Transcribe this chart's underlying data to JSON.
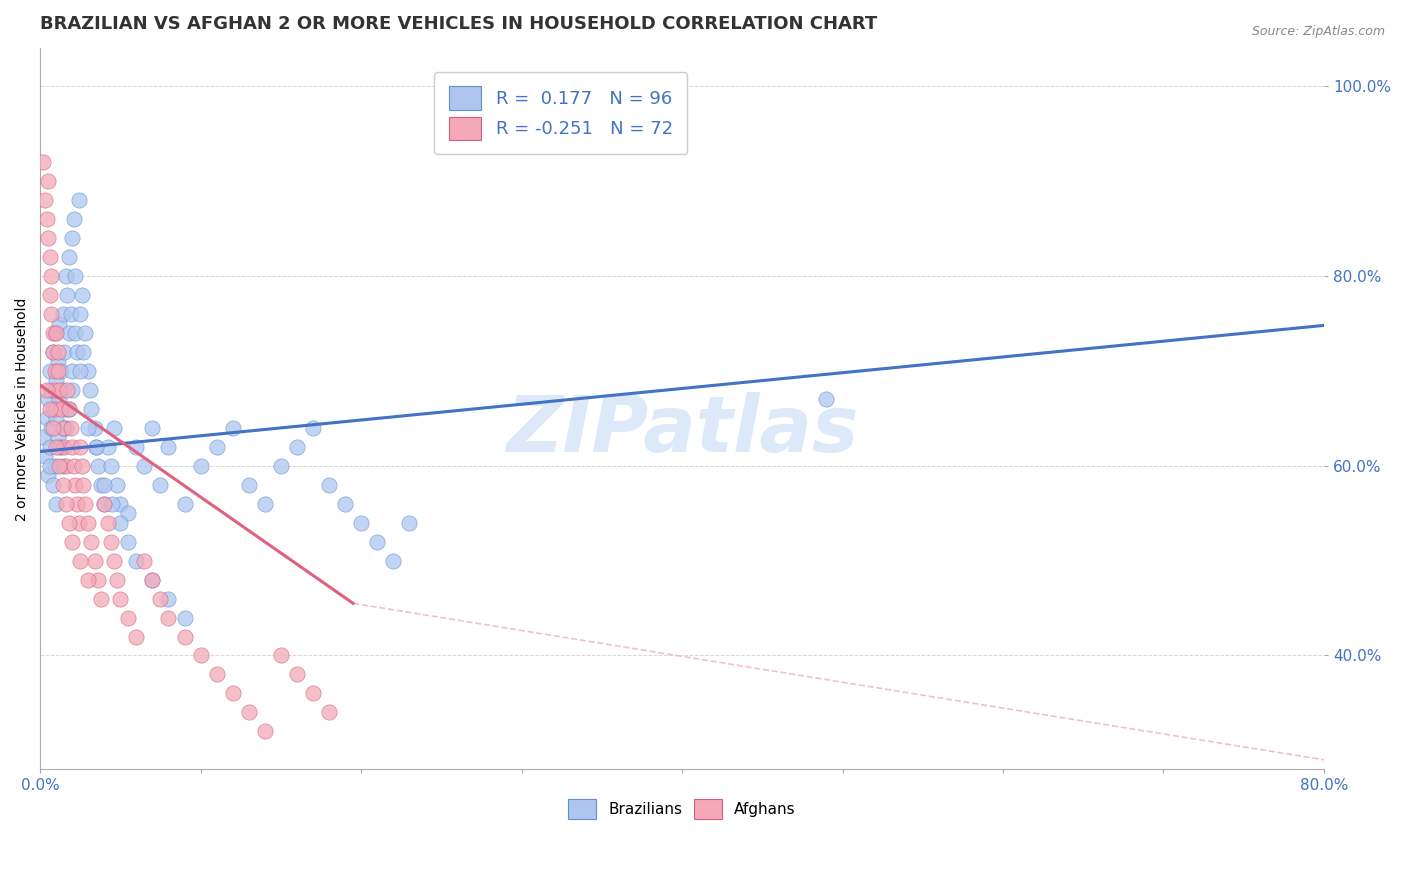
{
  "title": "BRAZILIAN VS AFGHAN 2 OR MORE VEHICLES IN HOUSEHOLD CORRELATION CHART",
  "source": "Source: ZipAtlas.com",
  "ylabel": "2 or more Vehicles in Household",
  "xlim": [
    0.0,
    0.8
  ],
  "ylim": [
    0.28,
    1.04
  ],
  "ytick_vals": [
    0.4,
    0.6,
    0.8,
    1.0
  ],
  "ytick_labels": [
    "40.0%",
    "60.0%",
    "80.0%",
    "100.0%"
  ],
  "xtick_show": [
    "0.0%",
    "80.0%"
  ],
  "legend_entries": [
    {
      "label": "R =  0.177   N = 96",
      "color": "#aec6ef"
    },
    {
      "label": "R = -0.251   N = 72",
      "color": "#f4a8b8"
    }
  ],
  "legend_bottom": [
    "Brazilians",
    "Afghans"
  ],
  "watermark": "ZIPatlas",
  "blue_scatter_x": [
    0.002,
    0.003,
    0.004,
    0.005,
    0.005,
    0.006,
    0.006,
    0.007,
    0.007,
    0.008,
    0.008,
    0.009,
    0.009,
    0.01,
    0.01,
    0.011,
    0.011,
    0.012,
    0.012,
    0.013,
    0.013,
    0.014,
    0.014,
    0.015,
    0.015,
    0.016,
    0.016,
    0.017,
    0.018,
    0.018,
    0.019,
    0.02,
    0.02,
    0.021,
    0.022,
    0.022,
    0.023,
    0.024,
    0.025,
    0.026,
    0.027,
    0.028,
    0.03,
    0.031,
    0.032,
    0.034,
    0.035,
    0.036,
    0.038,
    0.04,
    0.042,
    0.044,
    0.046,
    0.048,
    0.05,
    0.055,
    0.06,
    0.065,
    0.07,
    0.075,
    0.08,
    0.09,
    0.1,
    0.11,
    0.12,
    0.13,
    0.14,
    0.15,
    0.16,
    0.17,
    0.18,
    0.19,
    0.2,
    0.21,
    0.22,
    0.23,
    0.006,
    0.008,
    0.01,
    0.012,
    0.014,
    0.016,
    0.018,
    0.02,
    0.025,
    0.03,
    0.035,
    0.04,
    0.045,
    0.05,
    0.055,
    0.06,
    0.07,
    0.08,
    0.09,
    0.49
  ],
  "blue_scatter_y": [
    0.63,
    0.61,
    0.65,
    0.59,
    0.67,
    0.62,
    0.7,
    0.64,
    0.68,
    0.66,
    0.72,
    0.6,
    0.74,
    0.65,
    0.69,
    0.63,
    0.71,
    0.67,
    0.75,
    0.62,
    0.7,
    0.68,
    0.76,
    0.64,
    0.72,
    0.66,
    0.8,
    0.78,
    0.74,
    0.82,
    0.76,
    0.84,
    0.7,
    0.86,
    0.74,
    0.8,
    0.72,
    0.88,
    0.76,
    0.78,
    0.72,
    0.74,
    0.7,
    0.68,
    0.66,
    0.64,
    0.62,
    0.6,
    0.58,
    0.56,
    0.62,
    0.6,
    0.64,
    0.58,
    0.56,
    0.55,
    0.62,
    0.6,
    0.64,
    0.58,
    0.62,
    0.56,
    0.6,
    0.62,
    0.64,
    0.58,
    0.56,
    0.6,
    0.62,
    0.64,
    0.58,
    0.56,
    0.54,
    0.52,
    0.5,
    0.54,
    0.6,
    0.58,
    0.56,
    0.62,
    0.6,
    0.64,
    0.66,
    0.68,
    0.7,
    0.64,
    0.62,
    0.58,
    0.56,
    0.54,
    0.52,
    0.5,
    0.48,
    0.46,
    0.44,
    0.67
  ],
  "pink_scatter_x": [
    0.002,
    0.003,
    0.004,
    0.005,
    0.005,
    0.006,
    0.006,
    0.007,
    0.007,
    0.008,
    0.008,
    0.009,
    0.009,
    0.01,
    0.01,
    0.011,
    0.011,
    0.012,
    0.013,
    0.014,
    0.015,
    0.016,
    0.017,
    0.018,
    0.019,
    0.02,
    0.021,
    0.022,
    0.023,
    0.024,
    0.025,
    0.026,
    0.027,
    0.028,
    0.03,
    0.032,
    0.034,
    0.036,
    0.038,
    0.04,
    0.042,
    0.044,
    0.046,
    0.048,
    0.05,
    0.055,
    0.06,
    0.065,
    0.07,
    0.075,
    0.08,
    0.09,
    0.1,
    0.11,
    0.12,
    0.13,
    0.14,
    0.15,
    0.16,
    0.17,
    0.18,
    0.004,
    0.006,
    0.008,
    0.01,
    0.012,
    0.014,
    0.016,
    0.018,
    0.02,
    0.025,
    0.03
  ],
  "pink_scatter_y": [
    0.92,
    0.88,
    0.86,
    0.84,
    0.9,
    0.82,
    0.78,
    0.8,
    0.76,
    0.74,
    0.72,
    0.7,
    0.68,
    0.66,
    0.74,
    0.72,
    0.7,
    0.68,
    0.66,
    0.64,
    0.62,
    0.6,
    0.68,
    0.66,
    0.64,
    0.62,
    0.6,
    0.58,
    0.56,
    0.54,
    0.62,
    0.6,
    0.58,
    0.56,
    0.54,
    0.52,
    0.5,
    0.48,
    0.46,
    0.56,
    0.54,
    0.52,
    0.5,
    0.48,
    0.46,
    0.44,
    0.42,
    0.5,
    0.48,
    0.46,
    0.44,
    0.42,
    0.4,
    0.38,
    0.36,
    0.34,
    0.32,
    0.4,
    0.38,
    0.36,
    0.34,
    0.68,
    0.66,
    0.64,
    0.62,
    0.6,
    0.58,
    0.56,
    0.54,
    0.52,
    0.5,
    0.48
  ],
  "blue_line_x": [
    0.0,
    0.8
  ],
  "blue_line_y": [
    0.615,
    0.748
  ],
  "pink_solid_line_x": [
    0.0,
    0.195
  ],
  "pink_solid_line_y": [
    0.685,
    0.455
  ],
  "pink_dashed_line_x": [
    0.195,
    0.8
  ],
  "pink_dashed_line_y": [
    0.455,
    0.29
  ],
  "blue_dot_color": "#aec6ef",
  "pink_dot_color": "#f4a8b8",
  "blue_line_color": "#4472c4",
  "pink_line_color": "#e06080",
  "pink_dashed_color": "#f0b0c0",
  "watermark_color": "#dde8f8",
  "grid_color": "#cccccc",
  "tick_color": "#4472c4"
}
